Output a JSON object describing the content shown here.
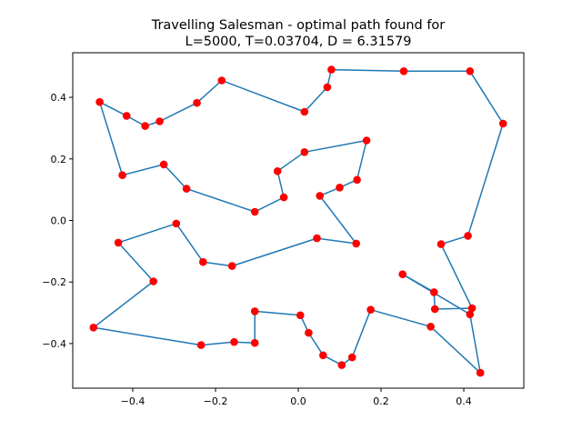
{
  "chart_data": {
    "type": "line",
    "title_line1": "Travelling Salesman - optimal path found for",
    "title_line2": "L=5000, T=0.03704, D = 6.31579",
    "xlabel": "",
    "ylabel": "",
    "xlim": [
      -0.545,
      0.545
    ],
    "ylim": [
      -0.545,
      0.545
    ],
    "xticks": [
      -0.4,
      -0.2,
      0.0,
      0.2,
      0.4
    ],
    "xtick_labels": [
      "−0.4",
      "−0.2",
      "0.0",
      "0.2",
      "0.4"
    ],
    "yticks": [
      -0.4,
      -0.2,
      0.0,
      0.2,
      0.4
    ],
    "ytick_labels": [
      "−0.4",
      "−0.2",
      "0.0",
      "0.2",
      "0.4"
    ],
    "grid": false,
    "line_color": "#1f77b4",
    "marker_color": "#ff0000",
    "points": [
      [
        -0.48,
        0.385
      ],
      [
        -0.415,
        0.34
      ],
      [
        -0.37,
        0.307
      ],
      [
        -0.335,
        0.322
      ],
      [
        -0.245,
        0.382
      ],
      [
        -0.185,
        0.455
      ],
      [
        0.015,
        0.353
      ],
      [
        0.07,
        0.433
      ],
      [
        0.08,
        0.49
      ],
      [
        0.255,
        0.485
      ],
      [
        0.415,
        0.485
      ],
      [
        0.495,
        0.315
      ],
      [
        0.41,
        -0.05
      ],
      [
        0.345,
        -0.077
      ],
      [
        0.42,
        -0.285
      ],
      [
        0.33,
        -0.288
      ],
      [
        0.328,
        -0.233
      ],
      [
        0.252,
        -0.175
      ],
      [
        0.415,
        -0.305
      ],
      [
        0.44,
        -0.495
      ],
      [
        0.32,
        -0.345
      ],
      [
        0.175,
        -0.29
      ],
      [
        0.13,
        -0.445
      ],
      [
        0.105,
        -0.47
      ],
      [
        0.06,
        -0.438
      ],
      [
        0.025,
        -0.365
      ],
      [
        0.005,
        -0.308
      ],
      [
        -0.105,
        -0.295
      ],
      [
        -0.105,
        -0.398
      ],
      [
        -0.155,
        -0.395
      ],
      [
        -0.235,
        -0.405
      ],
      [
        -0.495,
        -0.348
      ],
      [
        -0.35,
        -0.198
      ],
      [
        -0.435,
        -0.072
      ],
      [
        -0.295,
        -0.01
      ],
      [
        -0.23,
        -0.135
      ],
      [
        -0.16,
        -0.148
      ],
      [
        0.045,
        -0.058
      ],
      [
        0.14,
        -0.075
      ],
      [
        0.052,
        0.08
      ],
      [
        0.1,
        0.107
      ],
      [
        0.142,
        0.132
      ],
      [
        0.165,
        0.26
      ],
      [
        0.015,
        0.222
      ],
      [
        -0.05,
        0.16
      ],
      [
        -0.035,
        0.075
      ],
      [
        -0.105,
        0.028
      ],
      [
        -0.27,
        0.103
      ],
      [
        -0.325,
        0.182
      ],
      [
        -0.425,
        0.147
      ],
      [
        -0.48,
        0.385
      ]
    ]
  }
}
